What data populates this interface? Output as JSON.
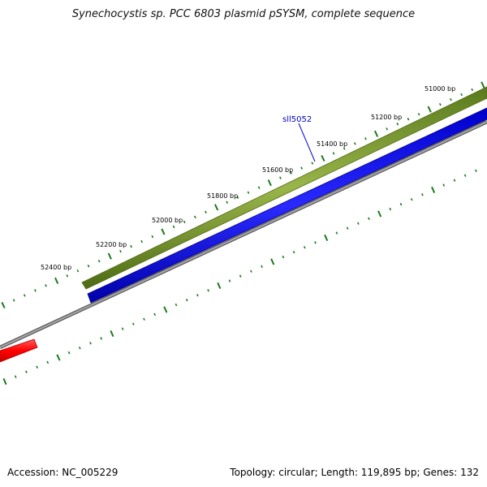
{
  "title": "Synechocystis sp. PCC 6803 plasmid pSYSM, complete sequence",
  "footer": {
    "accession": "Accession: NC_005229",
    "summary": "Topology: circular; Length: 119,895 bp; Genes: 132"
  },
  "ticks": [
    {
      "label": "51000 bp"
    },
    {
      "label": "51200 bp"
    },
    {
      "label": "51400 bp"
    },
    {
      "label": "51600 bp"
    },
    {
      "label": "51800 bp"
    },
    {
      "label": "52000 bp"
    },
    {
      "label": "52200 bp"
    },
    {
      "label": "52400 bp"
    }
  ],
  "gene_label": "sll5052",
  "colors": {
    "forward_gene": "#6b8e23",
    "forward_gene_light": "#9ab54a",
    "reverse_gene": "#0000ff",
    "backbone": "#8c8c8c",
    "highlight_gene": "#ff0000",
    "tick": "#1a7a1a",
    "gene_label": "#0000cc"
  }
}
